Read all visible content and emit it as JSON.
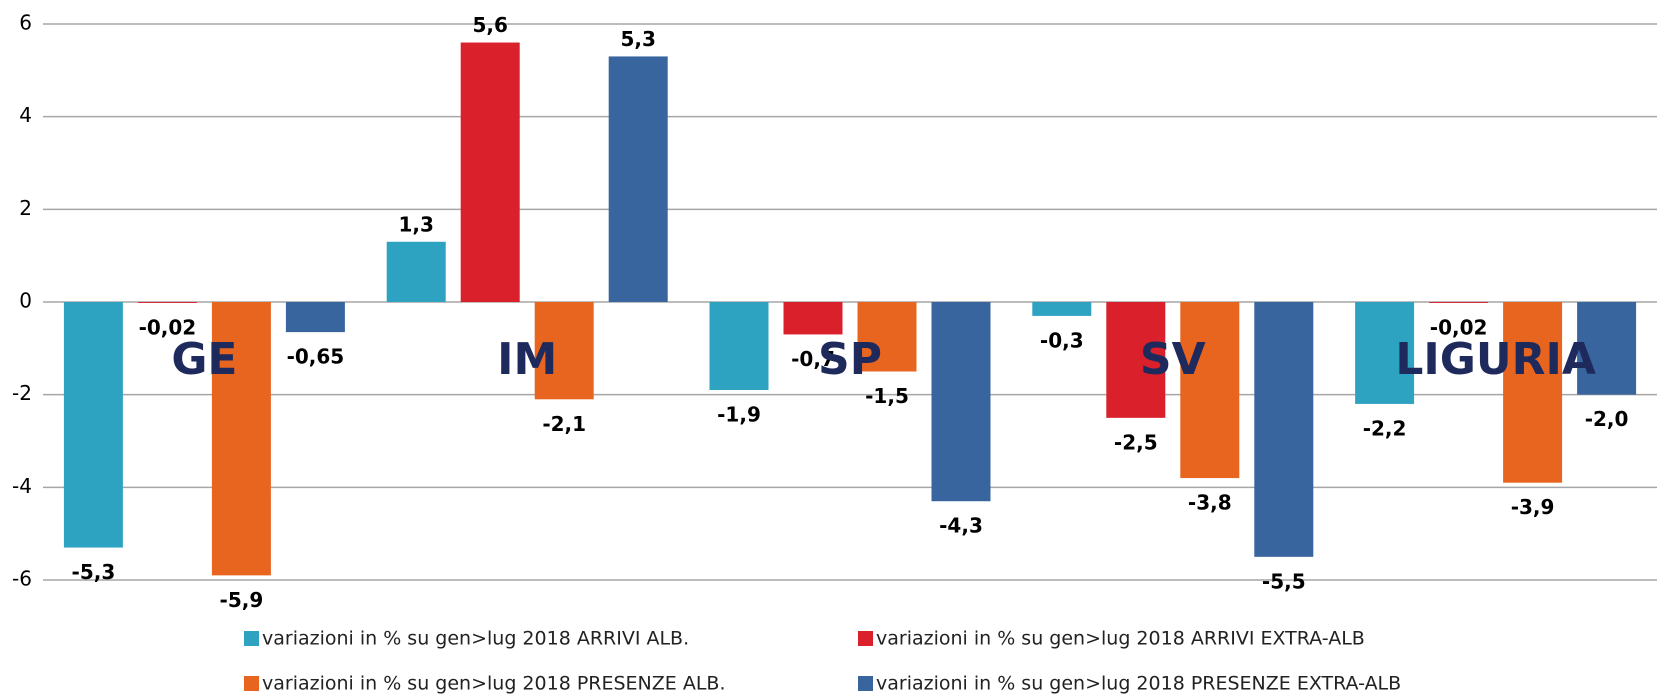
{
  "chart_data": {
    "type": "bar",
    "categories": [
      "GE",
      "IM",
      "SP",
      "SV",
      "LIGURIA"
    ],
    "series": [
      {
        "name": "variazioni in % su gen>lug 2018 ARRIVI ALB.",
        "color": "#2ea3c1",
        "values": [
          -5.3,
          1.3,
          -1.9,
          -0.3,
          -2.2
        ],
        "value_labels": [
          "-5,3",
          "1,3",
          "-1,9",
          "-0,3",
          "-2,2"
        ]
      },
      {
        "name": "variazioni in % su gen>lug 2018 ARRIVI EXTRA-ALB",
        "color": "#d9202b",
        "values": [
          -0.02,
          5.6,
          -0.7,
          -2.5,
          -0.02
        ],
        "value_labels": [
          "-0,02",
          "5,6",
          "-0,7",
          "-2,5",
          "-0,02"
        ]
      },
      {
        "name": "variazioni in % su gen>lug 2018 PRESENZE ALB.",
        "color": "#e8651f",
        "values": [
          -5.9,
          -2.1,
          -1.5,
          -3.8,
          -3.9
        ],
        "value_labels": [
          "-5,9",
          "-2,1",
          "-1,5",
          "-3,8",
          "-3,9"
        ]
      },
      {
        "name": "variazioni in % su gen>lug 2018 PRESENZE EXTRA-ALB",
        "color": "#39659e",
        "values": [
          -0.65,
          5.3,
          -4.3,
          -5.5,
          -2.0
        ],
        "value_labels": [
          "-0,65",
          "5,3",
          "-4,3",
          "-5,5",
          "-2,0"
        ]
      }
    ],
    "ylim": [
      -6,
      6
    ],
    "yticks": [
      -6,
      -4,
      -2,
      0,
      2,
      4,
      6
    ],
    "grid": true
  }
}
